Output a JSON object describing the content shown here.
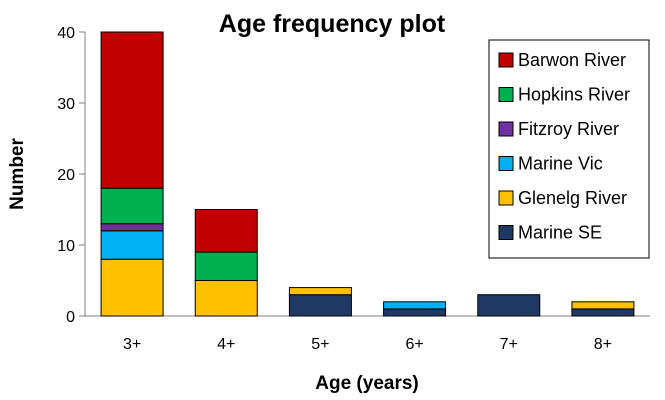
{
  "chart_data": {
    "type": "bar",
    "stacked": true,
    "title": "Age frequency plot",
    "xlabel": "Age (years)",
    "ylabel": "Number",
    "categories": [
      "3+",
      "4+",
      "5+",
      "6+",
      "7+",
      "8+"
    ],
    "ylim": [
      0,
      40
    ],
    "yticks": [
      0,
      10,
      20,
      30,
      40
    ],
    "grid": false,
    "legend_position": "right",
    "series": [
      {
        "name": "Marine SE",
        "color": "#1f3864",
        "values": [
          0,
          0,
          3,
          1,
          3,
          1
        ]
      },
      {
        "name": "Glenelg River",
        "color": "#ffc000",
        "values": [
          8,
          5,
          1,
          0,
          0,
          1
        ]
      },
      {
        "name": "Marine Vic",
        "color": "#00b0f0",
        "values": [
          4,
          0,
          0,
          1,
          0,
          0
        ]
      },
      {
        "name": "Fitzroy River",
        "color": "#7030a0",
        "values": [
          1,
          0,
          0,
          0,
          0,
          0
        ]
      },
      {
        "name": "Hopkins River",
        "color": "#00b050",
        "values": [
          5,
          4,
          0,
          0,
          0,
          0
        ]
      },
      {
        "name": "Barwon River",
        "color": "#c00000",
        "values": [
          22,
          6,
          0,
          0,
          0,
          0
        ]
      }
    ],
    "legend_order": [
      "Barwon River",
      "Hopkins River",
      "Fitzroy River",
      "Marine Vic",
      "Glenelg River",
      "Marine SE"
    ]
  }
}
